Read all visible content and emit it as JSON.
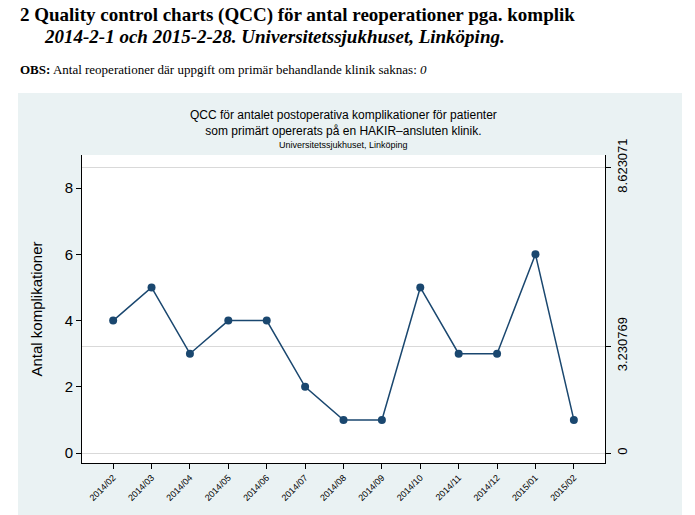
{
  "header": {
    "lines": [
      "2   Quality control charts (QCC) för antal reoperationer pga. komplik",
      "2014-2-1 och 2015-2-28. Universitetssjukhuset, Linköping."
    ],
    "note": {
      "label": "OBS:",
      "text": "Antal reoperationer där uppgift om primär behandlande klinik saknas:",
      "value": 0
    }
  },
  "chart_data": {
    "type": "line",
    "title": "QCC för antalet postoperativa komplikationer för patienter som primärt opererats på en HAKIR–ansluten klinik.",
    "title_lines": [
      "QCC för antalet postoperativa komplikationer för patienter",
      "som primärt opererats på en HAKIR–ansluten klinik."
    ],
    "subtitle": "Universitetssjukhuset, Linköping",
    "y_label": "Antal komplikationer",
    "categories": [
      "2014/02",
      "2014/03",
      "2014/04",
      "2014/05",
      "2014/06",
      "2014/07",
      "2014/08",
      "2014/09",
      "2014/10",
      "2014/11",
      "2014/12",
      "2015/01",
      "2015/02"
    ],
    "values": [
      4,
      5,
      3,
      4,
      4,
      2,
      1,
      1,
      5,
      3,
      3,
      6,
      1
    ],
    "color": "#1a476f",
    "marker": "circle",
    "ylim": [
      -0.3,
      9
    ],
    "yticks": [
      0,
      2,
      4,
      6,
      8
    ],
    "y2lim": [
      -0.3,
      9
    ],
    "y2ticks": [
      0,
      3.230769,
      8.623071
    ],
    "grid": true
  }
}
